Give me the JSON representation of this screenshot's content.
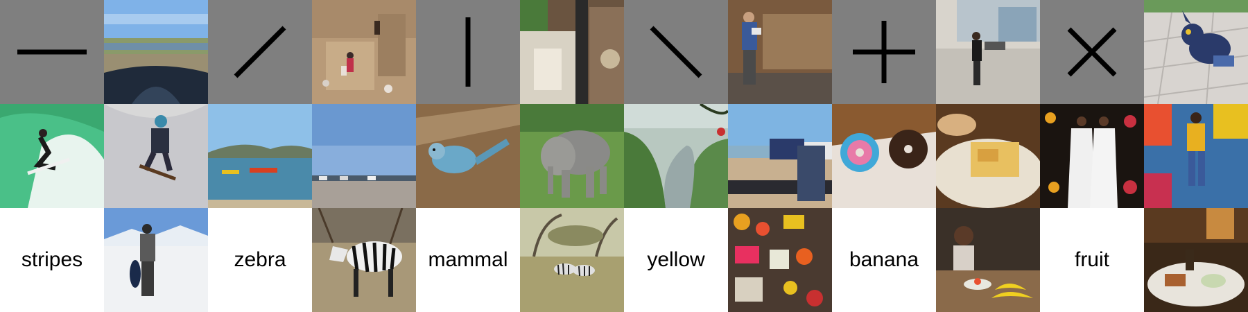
{
  "glyphs": [
    {
      "name": "horizontal-line-icon",
      "symbol": "—"
    },
    {
      "name": "forward-slash-icon",
      "symbol": "/"
    },
    {
      "name": "vertical-line-icon",
      "symbol": "|"
    },
    {
      "name": "back-slash-icon",
      "symbol": "\\"
    },
    {
      "name": "plus-icon",
      "symbol": "+"
    },
    {
      "name": "cross-icon",
      "symbol": "×"
    }
  ],
  "words": [
    "stripes",
    "zebra",
    "mammal",
    "yellow",
    "banana",
    "fruit"
  ],
  "colors": {
    "glyph_bg": "#7f7f7f",
    "glyph_stroke": "#000000",
    "word_bg": "#ffffff",
    "word_text": "#000000"
  }
}
